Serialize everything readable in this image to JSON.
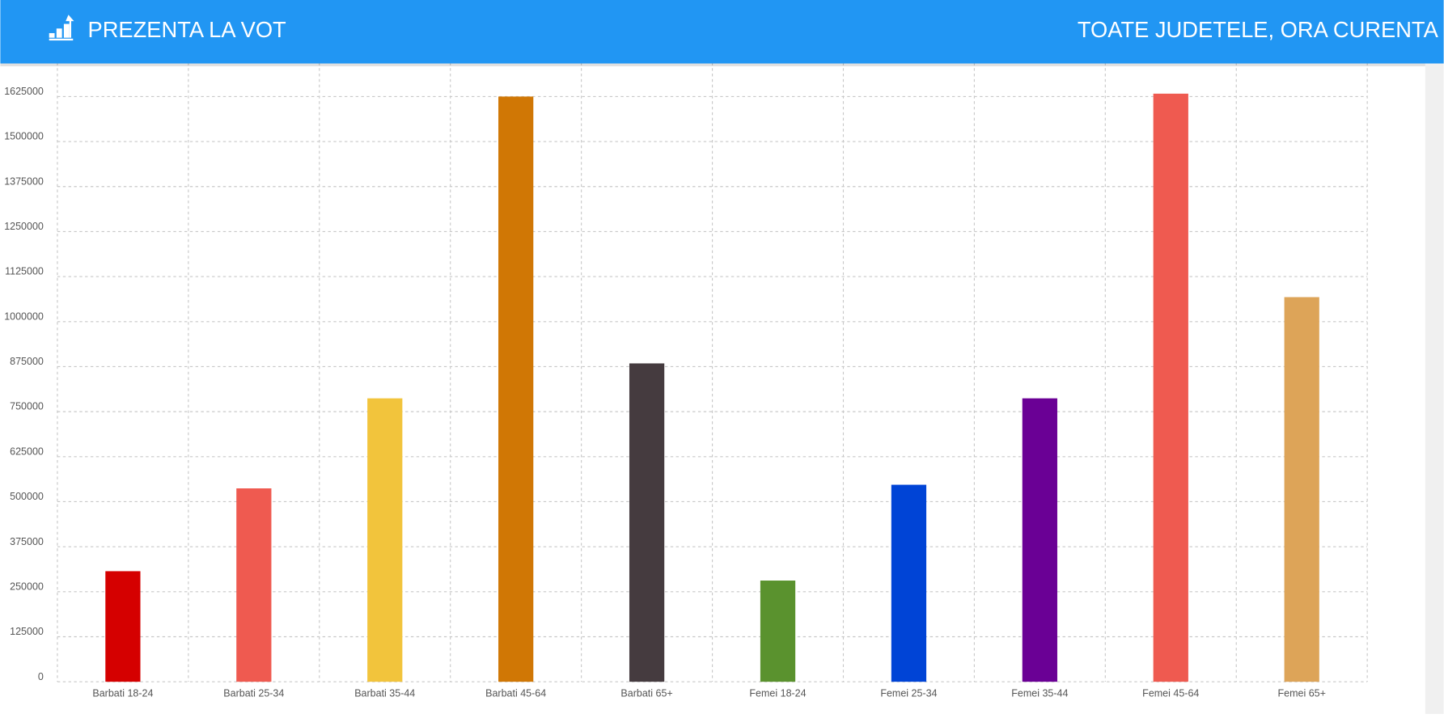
{
  "header": {
    "title": "PREZENTA LA VOT",
    "subtitle": "TOATE JUDETELE, ORA CURENTA"
  },
  "chart_data": {
    "type": "bar",
    "categories": [
      "Barbati 18-24",
      "Barbati 25-34",
      "Barbati 35-44",
      "Barbati 45-64",
      "Barbati 65+",
      "Femei 18-24",
      "Femei 25-34",
      "Femei 35-44",
      "Femei 45-64",
      "Femei 65+"
    ],
    "values": [
      307000,
      537000,
      787000,
      1625000,
      884000,
      281000,
      547000,
      787000,
      1633000,
      1068000
    ],
    "colors": [
      "#d50000",
      "#ef5a50",
      "#f2c43c",
      "#d07705",
      "#453b3f",
      "#5a922e",
      "#0044d6",
      "#6a0095",
      "#ef5a50",
      "#dda458"
    ],
    "ylim": [
      0,
      1750000
    ],
    "yticks": [
      0,
      125000,
      250000,
      375000,
      500000,
      625000,
      750000,
      875000,
      1000000,
      1125000,
      1250000,
      1375000,
      1500000,
      1625000
    ],
    "grid": true
  }
}
